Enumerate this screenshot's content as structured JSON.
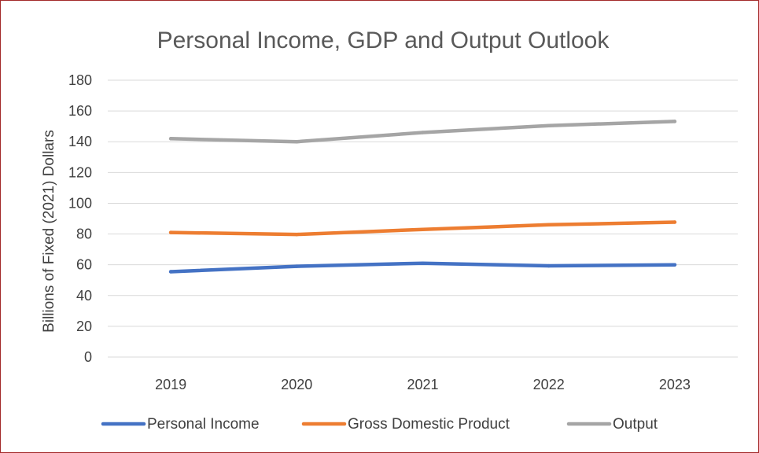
{
  "chart_data": {
    "type": "line",
    "title": "Personal Income, GDP and Output Outlook",
    "xlabel": "",
    "ylabel": "Billions of Fixed (2021) Dollars",
    "categories": [
      "2019",
      "2020",
      "2021",
      "2022",
      "2023"
    ],
    "ylim": [
      0,
      180
    ],
    "yticks": [
      0,
      20,
      40,
      60,
      80,
      100,
      120,
      140,
      160,
      180
    ],
    "grid": true,
    "legend_position": "bottom",
    "series": [
      {
        "name": "Personal Income",
        "color": "#4472c4",
        "values": [
          55.5,
          59,
          61,
          59.3,
          60
        ]
      },
      {
        "name": "Gross Domestic Product",
        "color": "#ed7d31",
        "values": [
          81,
          79.7,
          83,
          86,
          87.7
        ]
      },
      {
        "name": "Output",
        "color": "#a5a5a5",
        "values": [
          142,
          140,
          146,
          150.5,
          153.2
        ]
      }
    ]
  }
}
